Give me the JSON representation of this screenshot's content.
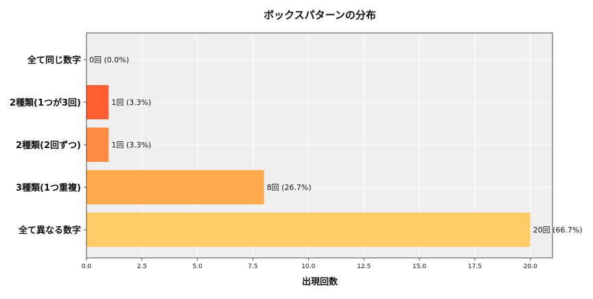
{
  "chart_data": {
    "type": "bar",
    "orientation": "horizontal",
    "title": "ボックスパターンの分布",
    "xlabel": "出現回数",
    "ylabel": "",
    "xlim": [
      0,
      21
    ],
    "xticks": [
      0,
      2.5,
      5,
      7.5,
      10,
      12.5,
      15,
      17.5,
      20
    ],
    "xtick_labels": [
      "0.0",
      "2.5",
      "5.0",
      "7.5",
      "10.0",
      "12.5",
      "15.0",
      "17.5",
      "20.0"
    ],
    "grid": true,
    "categories": [
      "全て同じ数字",
      "2種類(1つが3回)",
      "2種類(2回ずつ)",
      "3種類(1つ重複)",
      "全て異なる数字"
    ],
    "values": [
      0,
      1,
      1,
      8,
      20
    ],
    "data_labels": [
      "0回 (0.0%)",
      "1回 (3.3%)",
      "1回 (3.3%)",
      "8回 (26.7%)",
      "20回 (66.7%)"
    ],
    "colors": [
      "#ff3d1f",
      "#ff5e33",
      "#ff8c42",
      "#ffaa4c",
      "#ffcb66"
    ],
    "plot_background": "#efefef",
    "grid_color": "#ffffff"
  }
}
